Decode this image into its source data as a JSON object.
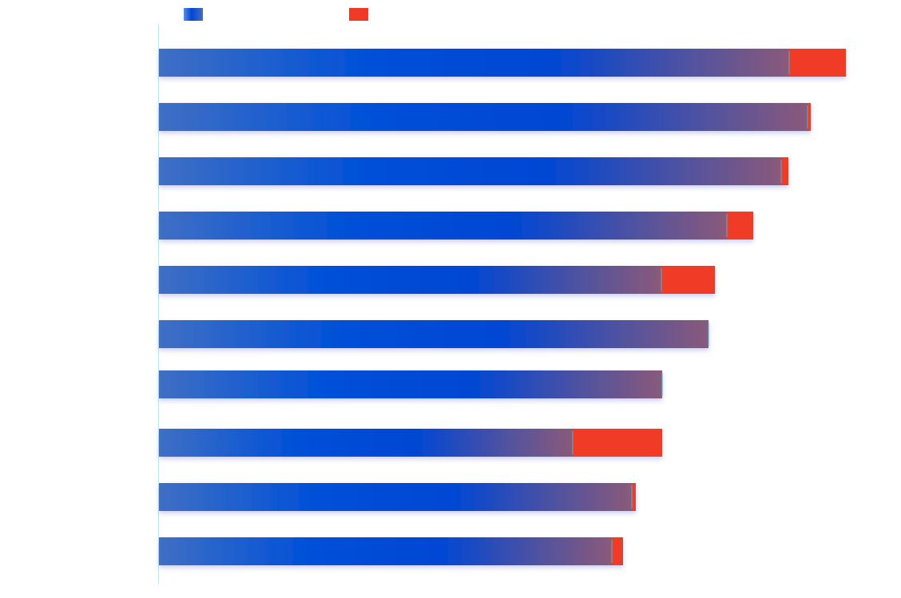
{
  "colors": {
    "series_a_gradient": [
      "#3f6fc4",
      "#0050d8",
      "#0047d4",
      "#8a5a7a"
    ],
    "series_b": "#f03a26",
    "axis_line": "#bfe6f3",
    "divider": "#46b4e0"
  },
  "legend": {
    "placement": "top-left",
    "items": [
      {
        "series": "a",
        "label": ""
      },
      {
        "series": "b",
        "label": ""
      }
    ]
  },
  "chart_data": {
    "type": "bar",
    "orientation": "horizontal",
    "stacked": true,
    "title": "",
    "xlabel": "",
    "ylabel": "",
    "grid": false,
    "x_axis_visible": false,
    "categories": [
      "",
      "",
      "",
      "",
      "",
      "",
      "",
      "",
      "",
      ""
    ],
    "series": [
      {
        "key": "a",
        "values": [
          789,
          812,
          779,
          711,
          629,
          688,
          630,
          518,
          592,
          567
        ]
      },
      {
        "key": "b",
        "values": [
          71,
          4,
          9,
          33,
          67,
          0,
          0,
          112,
          5,
          14
        ]
      }
    ],
    "xlim": [
      0,
      900
    ]
  }
}
